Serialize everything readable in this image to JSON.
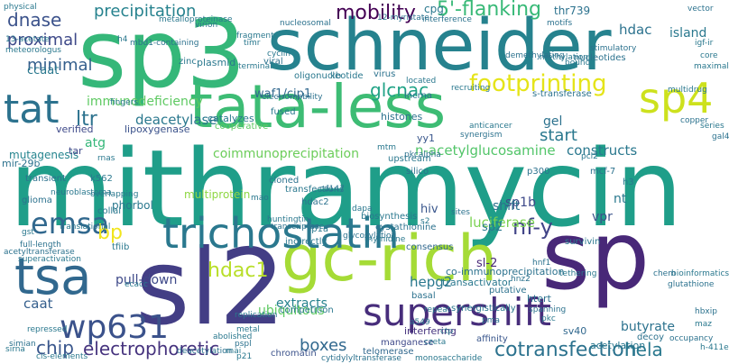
{
  "words": [
    {
      "text": "mithramycin",
      "color": "#1f9e89"
    },
    {
      "text": "sp3",
      "color": "#35b779"
    },
    {
      "text": "schneider",
      "color": "#26828e"
    },
    {
      "text": "tata-less",
      "color": "#3dbc74"
    },
    {
      "text": "sl2",
      "color": "#433e85"
    },
    {
      "text": "sp",
      "color": "#482878"
    },
    {
      "text": "gc-rich",
      "color": "#a5db36"
    },
    {
      "text": "tsa",
      "color": "#31688e"
    },
    {
      "text": "trichostatin",
      "color": "#2a788e"
    },
    {
      "text": "supershift",
      "color": "#472d7b"
    },
    {
      "text": "sp4",
      "color": "#cde11d"
    },
    {
      "text": "wp631",
      "color": "#3b528b"
    },
    {
      "text": "emsa",
      "color": "#31688e"
    },
    {
      "text": "electrophoretic",
      "color": "#46337e"
    },
    {
      "text": "footprinting",
      "color": "#e5e419"
    },
    {
      "text": "mobility",
      "color": "#440154"
    },
    {
      "text": "tat",
      "color": "#2c728e"
    },
    {
      "text": "cotransfection",
      "color": "#2c728e"
    },
    {
      "text": "5'-flanking",
      "color": "#38b977"
    },
    {
      "text": "precipitation",
      "color": "#26828e"
    },
    {
      "text": "nf-y",
      "color": "#414487"
    },
    {
      "text": "hdac1",
      "color": "#b8de29"
    },
    {
      "text": "ltr",
      "color": "#2c728e"
    },
    {
      "text": "boxes",
      "color": "#31688e"
    },
    {
      "text": "chip",
      "color": "#39568c"
    },
    {
      "text": "hela",
      "color": "#2a788e"
    },
    {
      "text": "bp",
      "color": "#f1e51d"
    },
    {
      "text": "start",
      "color": "#2a788e"
    },
    {
      "text": "n-acetylglucosamine",
      "color": "#52c569"
    },
    {
      "text": "glcnac",
      "color": "#20a386"
    },
    {
      "text": "dnase",
      "color": "#3b528b"
    },
    {
      "text": "island",
      "color": "#2a788e"
    },
    {
      "text": "hdac",
      "color": "#2c728e"
    },
    {
      "text": "luciferase",
      "color": "#7ad151"
    },
    {
      "text": "minimal",
      "color": "#355f8d"
    },
    {
      "text": "proximal",
      "color": "#3e4989"
    },
    {
      "text": "immunodeficiency",
      "color": "#5ec962"
    },
    {
      "text": "coimmunoprecipitation",
      "color": "#6ccd5a"
    },
    {
      "text": "deacetylase",
      "color": "#2a788e"
    },
    {
      "text": "waf1/cip1",
      "color": "#31688e"
    },
    {
      "text": "pull-down",
      "color": "#3e4989"
    },
    {
      "text": "caat",
      "color": "#355f8d"
    },
    {
      "text": "extracts",
      "color": "#26828e"
    },
    {
      "text": "ubiquitous",
      "color": "#5ec962"
    },
    {
      "text": "hepg2",
      "color": "#2a788e"
    },
    {
      "text": "butyrate",
      "color": "#2c728e"
    },
    {
      "text": "sp1b",
      "color": "#3e4989"
    },
    {
      "text": "constructs",
      "color": "#2a788e"
    },
    {
      "text": "multiprotein",
      "color": "#8fd744"
    },
    {
      "text": "atg",
      "color": "#35b779"
    },
    {
      "text": "ccaat",
      "color": "#2a788e"
    },
    {
      "text": "mutagenesis",
      "color": "#25848e"
    },
    {
      "text": "phorbol",
      "color": "#2a788e"
    },
    {
      "text": "shift",
      "color": "#2c728e"
    },
    {
      "text": "vpr",
      "color": "#3b528b"
    },
    {
      "text": "nt",
      "color": "#2a788e"
    },
    {
      "text": "hiv",
      "color": "#39568c"
    },
    {
      "text": "sp2",
      "color": "#2a788e"
    },
    {
      "text": "sl-2",
      "color": "#482878"
    },
    {
      "text": "gel",
      "color": "#2c728e"
    },
    {
      "text": "acetylation",
      "color": "#2a788e"
    },
    {
      "text": "htert",
      "color": "#2c728e"
    },
    {
      "text": "sv40",
      "color": "#31688e"
    },
    {
      "text": "cpg",
      "color": "#2a788e"
    },
    {
      "text": "thr739",
      "color": "#2c728e"
    },
    {
      "text": "co-immunoprecipitation",
      "color": "#2c728e"
    },
    {
      "text": "transactivator",
      "color": "#2a788e"
    },
    {
      "text": "histones",
      "color": "#2c728e"
    },
    {
      "text": "mir-29b",
      "color": "#2c728e"
    },
    {
      "text": "verified",
      "color": "#3e4989"
    },
    {
      "text": "lipoxygenase",
      "color": "#3b528b"
    },
    {
      "text": "catalyzes",
      "color": "#2a788e"
    },
    {
      "text": "plasmid",
      "color": "#2a788e"
    },
    {
      "text": "tar",
      "color": "#3e4989"
    },
    {
      "text": "yy1",
      "color": "#39568c"
    },
    {
      "text": "interfering",
      "color": "#46337e"
    },
    {
      "text": "competition",
      "color": "#2a788e"
    },
    {
      "text": "survivin",
      "color": "#2a788e"
    },
    {
      "text": "consensus",
      "color": "#31688e"
    },
    {
      "text": "manganese",
      "color": "#3e4989"
    },
    {
      "text": "affinity",
      "color": "#39568c"
    },
    {
      "text": "telomerase",
      "color": "#31688e"
    },
    {
      "text": "chromatin",
      "color": "#3b528b"
    },
    {
      "text": "synergistically",
      "color": "#2a788e"
    },
    {
      "text": "basal",
      "color": "#2c728e"
    },
    {
      "text": "putative",
      "color": "#2c728e"
    },
    {
      "text": "k562",
      "color": "#2a788e"
    },
    {
      "text": "transient",
      "color": "#2c728e"
    },
    {
      "text": "glioma",
      "color": "#2c728e"
    },
    {
      "text": "collal",
      "color": "#2a788e"
    },
    {
      "text": "tfiib",
      "color": "#2a788e"
    },
    {
      "text": "upstream",
      "color": "#2a788e"
    },
    {
      "text": "silico",
      "color": "#2c728e"
    },
    {
      "text": "transfections",
      "color": "#2a788e"
    },
    {
      "text": "hdac2",
      "color": "#2c728e"
    },
    {
      "text": "sp1a",
      "color": "#2a788e"
    },
    {
      "text": "indirectly",
      "color": "#2a788e"
    },
    {
      "text": "cloned",
      "color": "#2c728e"
    },
    {
      "text": "biosynthesis",
      "color": "#2a788e"
    },
    {
      "text": "cystathionine",
      "color": "#2c728e"
    },
    {
      "text": "p300",
      "color": "#2c728e"
    },
    {
      "text": "mcf-7",
      "color": "#2c728e"
    },
    {
      "text": "h3",
      "color": "#2a788e"
    },
    {
      "text": "decoy",
      "color": "#2c728e"
    },
    {
      "text": "s-transferase",
      "color": "#2c728e"
    },
    {
      "text": "nucleotides",
      "color": "#2c728e"
    },
    {
      "text": "lncrna",
      "color": "#2c728e"
    },
    {
      "text": "kb",
      "color": "#2a788e"
    },
    {
      "text": "fused",
      "color": "#2a788e"
    },
    {
      "text": "cooperative",
      "color": "#5ec962"
    },
    {
      "text": "zinc",
      "color": "#2a788e"
    },
    {
      "text": "viral",
      "color": "#2c728e"
    },
    {
      "text": "oligonucleotide",
      "color": "#2a788e"
    },
    {
      "text": "virus",
      "color": "#2c728e"
    },
    {
      "text": "fragment",
      "color": "#2a788e"
    },
    {
      "text": "nucleosomal",
      "color": "#2c728e"
    },
    {
      "text": "physical",
      "color": "#2a788e"
    },
    {
      "text": "interference",
      "color": "#2c728e"
    },
    {
      "text": "motifs",
      "color": "#2c728e"
    },
    {
      "text": "methylation",
      "color": "#2a788e"
    },
    {
      "text": "stimulatory",
      "color": "#2c728e"
    },
    {
      "text": "igf-ir",
      "color": "#2a788e"
    },
    {
      "text": "core",
      "color": "#2a788e"
    },
    {
      "text": "vector",
      "color": "#2c728e"
    },
    {
      "text": "copper",
      "color": "#2c728e"
    },
    {
      "text": "glutathione",
      "color": "#2c728e"
    },
    {
      "text": "bioinformatics",
      "color": "#2a788e"
    },
    {
      "text": "chem",
      "color": "#2c728e"
    },
    {
      "text": "hbxip",
      "color": "#2c728e"
    },
    {
      "text": "maz",
      "color": "#2a788e"
    },
    {
      "text": "occupancy",
      "color": "#2c728e"
    },
    {
      "text": "h-411e",
      "color": "#2a788e"
    },
    {
      "text": "cis-elements",
      "color": "#2a788e"
    },
    {
      "text": "sirna",
      "color": "#2a788e"
    },
    {
      "text": "acetyltransferase",
      "color": "#2c728e"
    },
    {
      "text": "superactivation",
      "color": "#2a788e"
    },
    {
      "text": "full-length",
      "color": "#2c728e"
    },
    {
      "text": "repressed",
      "color": "#2a788e"
    },
    {
      "text": "tethering",
      "color": "#2a788e"
    },
    {
      "text": "spanning",
      "color": "#2c728e"
    },
    {
      "text": "pkc",
      "color": "#2a788e"
    },
    {
      "text": "rnai",
      "color": "#2a788e"
    },
    {
      "text": "deacetylation",
      "color": "#2c728e"
    },
    {
      "text": "metal",
      "color": "#2a788e"
    },
    {
      "text": "abolished",
      "color": "#2a788e"
    },
    {
      "text": "a549",
      "color": "#2c728e"
    },
    {
      "text": "ctp",
      "color": "#2a788e"
    },
    {
      "text": "pspl",
      "color": "#2c728e"
    },
    {
      "text": "p21",
      "color": "#2a788e"
    },
    {
      "text": "cytidylyltransferase",
      "color": "#2c728e"
    },
    {
      "text": "monosaccharide",
      "color": "#2a788e"
    },
    {
      "text": "glycosylation",
      "color": "#2c728e"
    },
    {
      "text": "dapa",
      "color": "#2a788e"
    },
    {
      "text": "anticancer",
      "color": "#2a788e"
    },
    {
      "text": "synergism",
      "color": "#2c728e"
    },
    {
      "text": "recruiting",
      "color": "#2a788e"
    },
    {
      "text": "located",
      "color": "#2a788e"
    },
    {
      "text": "demethylating",
      "color": "#2c728e"
    },
    {
      "text": "multidrug",
      "color": "#2a788e"
    },
    {
      "text": "maximal",
      "color": "#2a788e"
    },
    {
      "text": "series",
      "color": "#2a788e"
    },
    {
      "text": "gal4",
      "color": "#2c728e"
    },
    {
      "text": "neuroblastoma",
      "color": "#2a788e"
    },
    {
      "text": "translational",
      "color": "#2a788e"
    },
    {
      "text": "simian",
      "color": "#2c728e"
    },
    {
      "text": "replication",
      "color": "#2a788e"
    },
    {
      "text": "cd147",
      "color": "#2c728e"
    },
    {
      "text": "huntingtin",
      "color": "#2a788e"
    },
    {
      "text": "mao",
      "color": "#2a788e"
    },
    {
      "text": "transcriptase",
      "color": "#2c728e"
    },
    {
      "text": "thymidine",
      "color": "#2a788e"
    },
    {
      "text": "mtm",
      "color": "#2a788e"
    },
    {
      "text": "pkcalpha",
      "color": "#2c728e"
    },
    {
      "text": "cyclin",
      "color": "#2a788e"
    },
    {
      "text": "virion",
      "color": "#2c728e"
    },
    {
      "text": "terminal",
      "color": "#2a788e"
    },
    {
      "text": "h4",
      "color": "#2a788e"
    },
    {
      "text": "mbd1-containing",
      "color": "#2c728e"
    },
    {
      "text": "metalloproteinase",
      "color": "#2a788e"
    },
    {
      "text": "12-myristate",
      "color": "#2c728e"
    },
    {
      "text": "13-acetate",
      "color": "#2a788e"
    },
    {
      "text": "fingers",
      "color": "#2a788e"
    },
    {
      "text": "electromobility",
      "color": "#2c728e"
    },
    {
      "text": "bound",
      "color": "#2a788e"
    },
    {
      "text": "timr",
      "color": "#2a788e"
    },
    {
      "text": "meteorologus",
      "color": "#2a788e"
    },
    {
      "text": "pma",
      "color": "#2c728e"
    },
    {
      "text": "repeat",
      "color": "#2a788e"
    },
    {
      "text": "hnf1",
      "color": "#2c728e"
    },
    {
      "text": "czeta",
      "color": "#2a788e"
    },
    {
      "text": "pcl2",
      "color": "#2a788e"
    },
    {
      "text": "overlapping",
      "color": "#2a788e"
    },
    {
      "text": "gst",
      "color": "#2a788e"
    },
    {
      "text": "hnz2",
      "color": "#2c728e"
    },
    {
      "text": "rnas",
      "color": "#2a788e"
    },
    {
      "text": "ecacc",
      "color": "#2a788e"
    },
    {
      "text": "sites",
      "color": "#2c728e"
    },
    {
      "text": "s2",
      "color": "#2a788e"
    }
  ]
}
